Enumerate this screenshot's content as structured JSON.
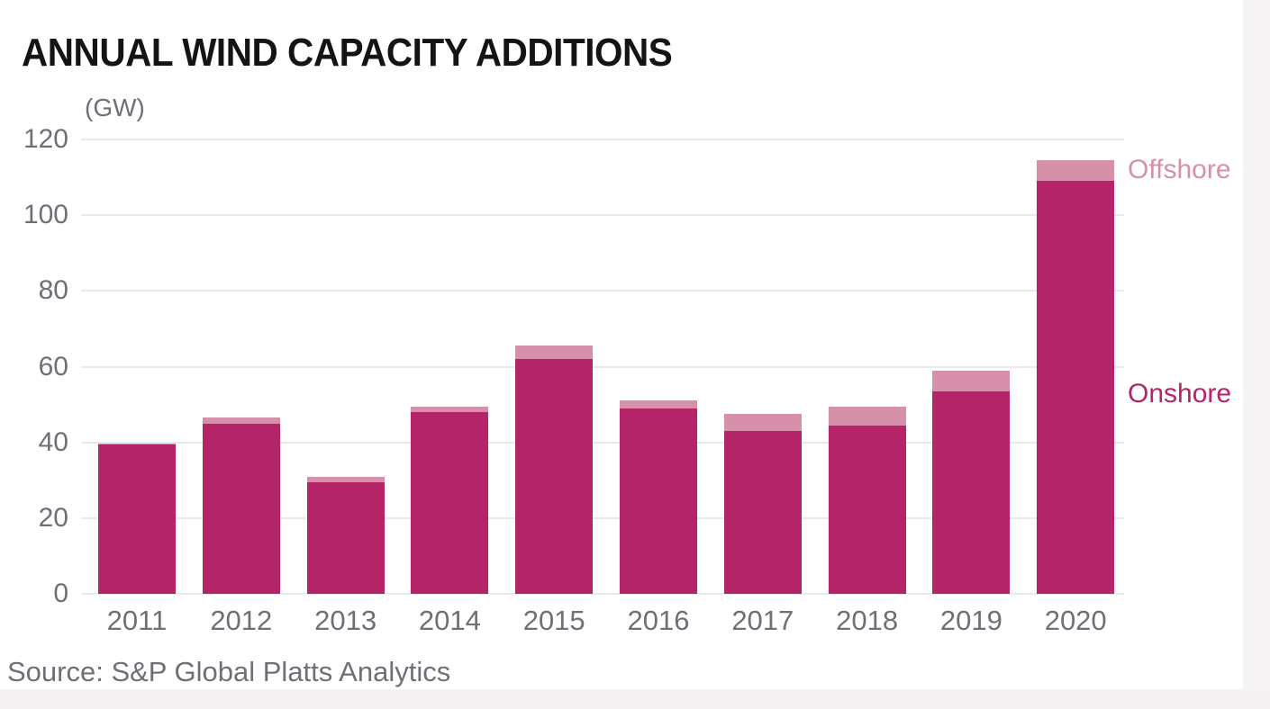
{
  "title": "ANNUAL WIND CAPACITY ADDITIONS",
  "unit_label": "(GW)",
  "source": "Source: S&P Global Platts Analytics",
  "series_labels": {
    "offshore": "Offshore",
    "onshore": "Onshore"
  },
  "colors": {
    "onshore": "#b32566",
    "offshore": "#d690aa",
    "axis_text": "#6d7177",
    "gridline": "#e9e9e9",
    "title_text": "#141414"
  },
  "chart_data": {
    "type": "bar",
    "stacked": true,
    "title": "ANNUAL WIND CAPACITY ADDITIONS",
    "ylabel": "(GW)",
    "xlabel": "",
    "ylim": [
      0,
      120
    ],
    "yticks": [
      0,
      20,
      40,
      60,
      80,
      100,
      120
    ],
    "grid": true,
    "legend_position": "right-of-2020-bar",
    "categories": [
      "2011",
      "2012",
      "2013",
      "2014",
      "2015",
      "2016",
      "2017",
      "2018",
      "2019",
      "2020"
    ],
    "series": [
      {
        "name": "Onshore",
        "color": "#b32566",
        "values": [
          39.5,
          45.0,
          29.5,
          48.0,
          62.0,
          49.0,
          43.0,
          44.5,
          53.5,
          109.0
        ]
      },
      {
        "name": "Offshore",
        "color": "#d690aa",
        "values": [
          0.3,
          1.5,
          1.5,
          1.5,
          3.5,
          2.0,
          4.5,
          5.0,
          5.5,
          5.5
        ]
      }
    ],
    "totals": [
      39.8,
      46.5,
      31.0,
      49.5,
      65.5,
      51.0,
      47.5,
      49.5,
      59.0,
      114.5
    ]
  }
}
